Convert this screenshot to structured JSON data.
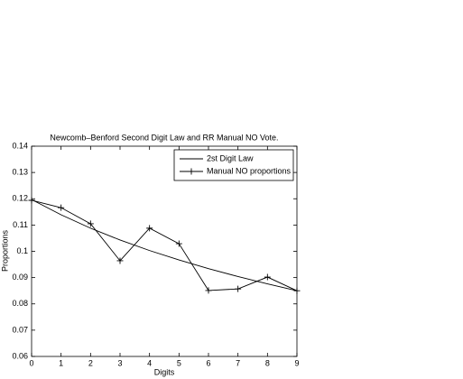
{
  "chart_data": {
    "type": "line",
    "title": "Newcomb–Benford Second Digit Law and  RR Manual NO Vote.",
    "x_label": "Digits",
    "y_label": "Proportions",
    "x": [
      0,
      1,
      2,
      3,
      4,
      5,
      6,
      7,
      8,
      9
    ],
    "series": [
      {
        "name": "2st Digit Law",
        "color": "#000000",
        "marker": "none",
        "values": [
          0.1197,
          0.1139,
          0.1088,
          0.1043,
          0.1003,
          0.0967,
          0.0934,
          0.0904,
          0.0876,
          0.085
        ]
      },
      {
        "name": "Manual NO proportions",
        "color": "#000000",
        "marker": "+",
        "values": [
          0.1194,
          0.1166,
          0.1105,
          0.0964,
          0.1088,
          0.1029,
          0.0851,
          0.0857,
          0.0902,
          0.085
        ]
      }
    ],
    "xlim": [
      0,
      9
    ],
    "xticks": [
      0,
      1,
      2,
      3,
      4,
      5,
      6,
      7,
      8,
      9
    ],
    "ylim": [
      0.06,
      0.14
    ],
    "yticks": [
      0.06,
      0.07,
      0.08,
      0.09,
      0.1,
      0.11,
      0.12,
      0.13,
      0.14
    ],
    "grid": false,
    "legend": "top-right"
  }
}
